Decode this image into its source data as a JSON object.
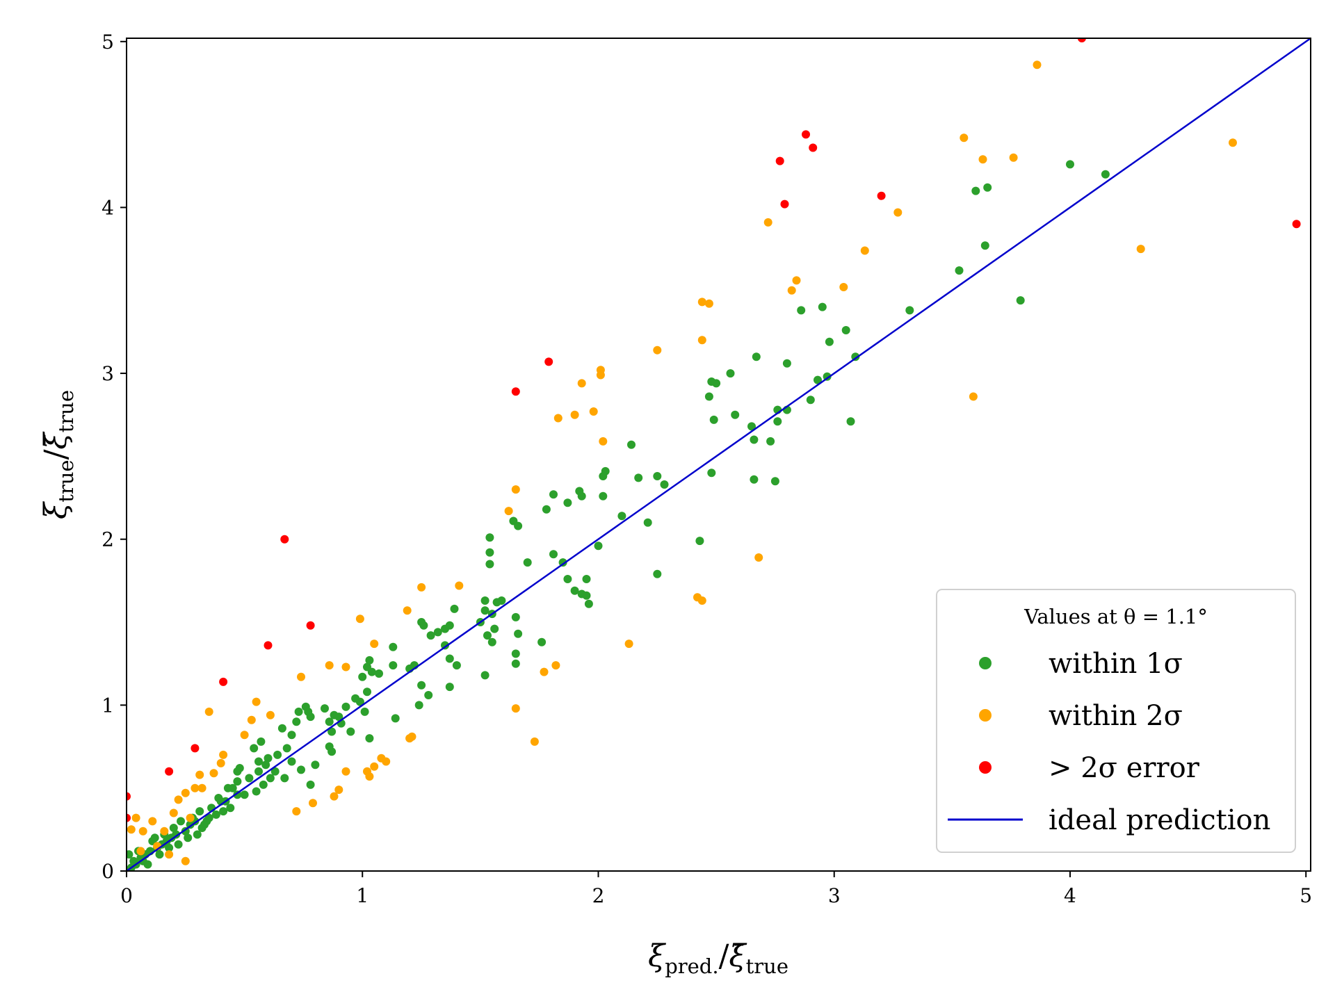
{
  "chart_data": {
    "type": "scatter",
    "xlabel": {
      "main": "ξ",
      "sub": "pred.",
      "sep": "/",
      "bar": "ξ̄",
      "bar_sub": "true"
    },
    "ylabel": {
      "main": "ξ",
      "sub": "true",
      "sep": "/",
      "bar": "ξ̄",
      "bar_sub": "true"
    },
    "xlim": [
      0,
      5.02
    ],
    "ylim": [
      0,
      5.02
    ],
    "x_ticks": [
      0,
      1,
      2,
      3,
      4,
      5
    ],
    "y_ticks": [
      0,
      1,
      2,
      3,
      4,
      5
    ],
    "x_tick_labels": [
      "0",
      "1",
      "2",
      "3",
      "4",
      "5"
    ],
    "y_tick_labels": [
      "0",
      "1",
      "2",
      "3",
      "4",
      "5"
    ],
    "legend": {
      "position": "lower-right",
      "title": "Values at θ = 1.1°",
      "entries": [
        {
          "label": "within 1σ",
          "series": "within1"
        },
        {
          "label": "within 2σ",
          "series": "within2"
        },
        {
          "label": "> 2σ error",
          "series": "outlier"
        },
        {
          "label": "ideal prediction",
          "series": "ideal"
        }
      ]
    },
    "colors": {
      "within1": "#2ca02c",
      "within2": "#ffa500",
      "outlier": "#ff0000",
      "ideal": "#0000cc"
    },
    "ideal_line": [
      [
        0,
        0
      ],
      [
        5.02,
        5.02
      ]
    ],
    "series": [
      {
        "name": "within 1σ",
        "key": "within1",
        "points": [
          [
            4.15,
            4.2
          ],
          [
            4.0,
            4.26
          ],
          [
            3.65,
            4.12
          ],
          [
            3.6,
            4.1
          ],
          [
            3.64,
            3.77
          ],
          [
            3.53,
            3.62
          ],
          [
            3.79,
            3.44
          ],
          [
            3.32,
            3.38
          ],
          [
            2.86,
            3.38
          ],
          [
            2.95,
            3.4
          ],
          [
            2.98,
            3.19
          ],
          [
            3.05,
            3.26
          ],
          [
            3.09,
            3.1
          ],
          [
            2.97,
            2.98
          ],
          [
            2.93,
            2.96
          ],
          [
            2.9,
            2.84
          ],
          [
            3.07,
            2.71
          ],
          [
            2.8,
            3.06
          ],
          [
            2.8,
            2.78
          ],
          [
            2.76,
            2.71
          ],
          [
            2.76,
            2.78
          ],
          [
            2.67,
            3.1
          ],
          [
            2.73,
            2.59
          ],
          [
            2.65,
            2.68
          ],
          [
            2.66,
            2.6
          ],
          [
            2.66,
            2.36
          ],
          [
            2.75,
            2.35
          ],
          [
            2.56,
            3.0
          ],
          [
            2.5,
            2.94
          ],
          [
            2.48,
            2.95
          ],
          [
            2.47,
            2.86
          ],
          [
            2.58,
            2.75
          ],
          [
            2.49,
            2.72
          ],
          [
            2.48,
            2.4
          ],
          [
            2.43,
            1.99
          ],
          [
            2.28,
            2.33
          ],
          [
            2.25,
            2.38
          ],
          [
            2.17,
            2.37
          ],
          [
            2.25,
            1.79
          ],
          [
            2.21,
            2.1
          ],
          [
            2.14,
            2.57
          ],
          [
            2.1,
            2.14
          ],
          [
            2.03,
            2.41
          ],
          [
            2.02,
            2.38
          ],
          [
            2.02,
            2.26
          ],
          [
            2.0,
            1.96
          ],
          [
            1.92,
            2.29
          ],
          [
            1.93,
            2.26
          ],
          [
            1.87,
            2.22
          ],
          [
            1.81,
            2.27
          ],
          [
            1.78,
            2.18
          ],
          [
            1.81,
            1.91
          ],
          [
            1.85,
            1.86
          ],
          [
            1.87,
            1.76
          ],
          [
            1.9,
            1.69
          ],
          [
            1.93,
            1.67
          ],
          [
            1.96,
            1.61
          ],
          [
            1.95,
            1.66
          ],
          [
            1.95,
            1.76
          ],
          [
            1.7,
            1.86
          ],
          [
            1.76,
            1.38
          ],
          [
            1.66,
            2.08
          ],
          [
            1.64,
            2.11
          ],
          [
            1.65,
            1.53
          ],
          [
            1.66,
            1.43
          ],
          [
            1.65,
            1.31
          ],
          [
            1.65,
            1.25
          ],
          [
            1.59,
            1.63
          ],
          [
            1.57,
            1.62
          ],
          [
            1.56,
            1.46
          ],
          [
            1.55,
            1.55
          ],
          [
            1.54,
            1.92
          ],
          [
            1.54,
            1.85
          ],
          [
            1.54,
            2.01
          ],
          [
            1.52,
            1.63
          ],
          [
            1.52,
            1.57
          ],
          [
            1.5,
            1.5
          ],
          [
            1.53,
            1.42
          ],
          [
            1.55,
            1.38
          ],
          [
            1.52,
            1.18
          ],
          [
            1.39,
            1.58
          ],
          [
            1.37,
            1.48
          ],
          [
            1.35,
            1.46
          ],
          [
            1.32,
            1.44
          ],
          [
            1.35,
            1.36
          ],
          [
            1.37,
            1.28
          ],
          [
            1.4,
            1.24
          ],
          [
            1.37,
            1.11
          ],
          [
            1.26,
            1.48
          ],
          [
            1.25,
            1.5
          ],
          [
            1.29,
            1.42
          ],
          [
            1.25,
            1.12
          ],
          [
            1.24,
            1.0
          ],
          [
            1.28,
            1.06
          ],
          [
            1.22,
            1.24
          ],
          [
            1.2,
            1.22
          ],
          [
            1.13,
            1.35
          ],
          [
            1.13,
            1.24
          ],
          [
            1.14,
            0.92
          ],
          [
            1.07,
            1.19
          ],
          [
            1.04,
            1.2
          ],
          [
            1.03,
            1.27
          ],
          [
            1.02,
            1.23
          ],
          [
            1.0,
            1.17
          ],
          [
            1.02,
            1.08
          ],
          [
            1.03,
            0.8
          ],
          [
            1.01,
            0.96
          ],
          [
            0.99,
            1.02
          ],
          [
            0.97,
            1.04
          ],
          [
            0.93,
            0.99
          ],
          [
            0.91,
            0.89
          ],
          [
            0.95,
            0.84
          ],
          [
            0.9,
            0.93
          ],
          [
            0.88,
            0.94
          ],
          [
            0.84,
            0.98
          ],
          [
            0.86,
            0.9
          ],
          [
            0.87,
            0.84
          ],
          [
            0.86,
            0.75
          ],
          [
            0.87,
            0.72
          ],
          [
            0.78,
            0.93
          ],
          [
            0.77,
            0.96
          ],
          [
            0.73,
            0.96
          ],
          [
            0.76,
            0.99
          ],
          [
            0.72,
            0.9
          ],
          [
            0.7,
            0.82
          ],
          [
            0.66,
            0.86
          ],
          [
            0.68,
            0.74
          ],
          [
            0.7,
            0.66
          ],
          [
            0.64,
            0.7
          ],
          [
            0.63,
            0.6
          ],
          [
            0.61,
            0.56
          ],
          [
            0.56,
            0.66
          ],
          [
            0.57,
            0.78
          ],
          [
            0.56,
            0.6
          ],
          [
            0.55,
            0.48
          ],
          [
            0.52,
            0.56
          ],
          [
            0.5,
            0.46
          ],
          [
            0.47,
            0.6
          ],
          [
            0.47,
            0.54
          ],
          [
            0.43,
            0.5
          ],
          [
            0.47,
            0.46
          ],
          [
            0.42,
            0.42
          ],
          [
            0.4,
            0.42
          ],
          [
            0.38,
            0.34
          ],
          [
            0.34,
            0.3
          ],
          [
            0.31,
            0.36
          ],
          [
            0.28,
            0.32
          ],
          [
            0.27,
            0.28
          ],
          [
            0.25,
            0.24
          ],
          [
            0.23,
            0.3
          ],
          [
            0.21,
            0.22
          ],
          [
            0.19,
            0.2
          ],
          [
            0.17,
            0.18
          ],
          [
            0.15,
            0.16
          ],
          [
            0.13,
            0.14
          ],
          [
            0.12,
            0.2
          ],
          [
            0.1,
            0.12
          ],
          [
            0.08,
            0.1
          ],
          [
            0.07,
            0.06
          ],
          [
            0.06,
            0.08
          ],
          [
            0.04,
            0.04
          ],
          [
            0.03,
            0.06
          ],
          [
            0.02,
            0.02
          ],
          [
            0.01,
            0.1
          ],
          [
            0.29,
            0.3
          ],
          [
            0.32,
            0.26
          ],
          [
            0.35,
            0.32
          ],
          [
            0.22,
            0.16
          ],
          [
            0.18,
            0.14
          ],
          [
            0.14,
            0.1
          ],
          [
            0.26,
            0.2
          ],
          [
            0.3,
            0.22
          ],
          [
            0.36,
            0.38
          ],
          [
            0.39,
            0.44
          ],
          [
            0.45,
            0.5
          ],
          [
            0.48,
            0.62
          ],
          [
            0.59,
            0.64
          ],
          [
            0.54,
            0.74
          ],
          [
            0.6,
            0.68
          ],
          [
            0.67,
            0.56
          ],
          [
            0.74,
            0.61
          ],
          [
            0.78,
            0.52
          ],
          [
            0.8,
            0.64
          ],
          [
            0.58,
            0.52
          ],
          [
            0.44,
            0.38
          ],
          [
            0.41,
            0.36
          ],
          [
            0.33,
            0.28
          ],
          [
            0.2,
            0.26
          ],
          [
            0.16,
            0.22
          ],
          [
            0.11,
            0.18
          ],
          [
            0.09,
            0.04
          ],
          [
            0.05,
            0.12
          ]
        ]
      },
      {
        "name": "within 2σ",
        "key": "within2",
        "points": [
          [
            3.86,
            4.86
          ],
          [
            3.55,
            4.42
          ],
          [
            3.63,
            4.29
          ],
          [
            3.76,
            4.3
          ],
          [
            4.69,
            4.39
          ],
          [
            4.3,
            3.75
          ],
          [
            3.27,
            3.97
          ],
          [
            2.72,
            3.91
          ],
          [
            3.13,
            3.74
          ],
          [
            3.04,
            3.52
          ],
          [
            2.84,
            3.56
          ],
          [
            2.82,
            3.5
          ],
          [
            2.44,
            3.43
          ],
          [
            2.47,
            3.42
          ],
          [
            2.44,
            3.2
          ],
          [
            2.25,
            3.14
          ],
          [
            2.01,
            3.02
          ],
          [
            2.01,
            2.99
          ],
          [
            1.93,
            2.94
          ],
          [
            1.98,
            2.77
          ],
          [
            1.9,
            2.75
          ],
          [
            1.83,
            2.73
          ],
          [
            3.59,
            2.86
          ],
          [
            2.02,
            2.59
          ],
          [
            1.65,
            2.3
          ],
          [
            1.62,
            2.17
          ],
          [
            2.68,
            1.89
          ],
          [
            2.42,
            1.65
          ],
          [
            2.44,
            1.63
          ],
          [
            2.13,
            1.37
          ],
          [
            1.41,
            1.72
          ],
          [
            1.25,
            1.71
          ],
          [
            1.19,
            1.57
          ],
          [
            0.99,
            1.52
          ],
          [
            1.05,
            1.37
          ],
          [
            1.82,
            1.24
          ],
          [
            1.77,
            1.2
          ],
          [
            1.65,
            0.98
          ],
          [
            1.73,
            0.78
          ],
          [
            0.86,
            1.24
          ],
          [
            0.93,
            1.23
          ],
          [
            0.74,
            1.17
          ],
          [
            0.55,
            1.02
          ],
          [
            0.61,
            0.94
          ],
          [
            0.53,
            0.91
          ],
          [
            0.35,
            0.96
          ],
          [
            0.5,
            0.82
          ],
          [
            1.21,
            0.81
          ],
          [
            1.2,
            0.8
          ],
          [
            1.08,
            0.68
          ],
          [
            1.1,
            0.66
          ],
          [
            1.05,
            0.63
          ],
          [
            1.02,
            0.6
          ],
          [
            1.03,
            0.57
          ],
          [
            0.93,
            0.6
          ],
          [
            0.9,
            0.49
          ],
          [
            0.88,
            0.45
          ],
          [
            0.79,
            0.41
          ],
          [
            0.72,
            0.36
          ],
          [
            0.29,
            0.5
          ],
          [
            0.32,
            0.5
          ],
          [
            0.25,
            0.47
          ],
          [
            0.22,
            0.43
          ],
          [
            0.2,
            0.35
          ],
          [
            0.27,
            0.32
          ],
          [
            0.4,
            0.65
          ],
          [
            0.37,
            0.59
          ],
          [
            0.41,
            0.7
          ],
          [
            0.31,
            0.58
          ],
          [
            0.16,
            0.24
          ],
          [
            0.11,
            0.3
          ],
          [
            0.07,
            0.24
          ],
          [
            0.04,
            0.32
          ],
          [
            0.02,
            0.25
          ],
          [
            0.06,
            0.12
          ],
          [
            0.25,
            0.06
          ],
          [
            0.18,
            0.1
          ],
          [
            0.13,
            0.15
          ]
        ]
      },
      {
        "name": "> 2σ error",
        "key": "outlier",
        "points": [
          [
            4.05,
            5.02
          ],
          [
            2.88,
            4.44
          ],
          [
            2.91,
            4.36
          ],
          [
            2.77,
            4.28
          ],
          [
            2.79,
            4.02
          ],
          [
            3.2,
            4.07
          ],
          [
            4.96,
            3.9
          ],
          [
            1.79,
            3.07
          ],
          [
            1.65,
            2.89
          ],
          [
            0.67,
            2.0
          ],
          [
            0.78,
            1.48
          ],
          [
            0.6,
            1.36
          ],
          [
            0.41,
            1.14
          ],
          [
            0.29,
            0.74
          ],
          [
            0.18,
            0.6
          ],
          [
            0.0,
            0.45
          ],
          [
            0.0,
            0.32
          ]
        ]
      }
    ]
  }
}
